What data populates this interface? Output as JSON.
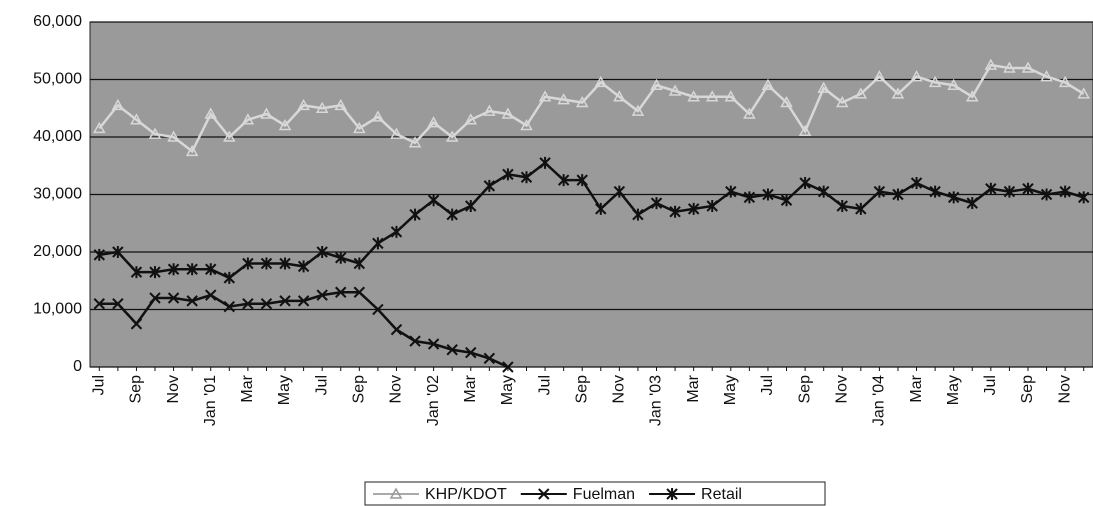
{
  "chart_data": {
    "type": "line",
    "categories": [
      "Jul",
      null,
      "Sep",
      null,
      "Nov",
      null,
      "Jan '01",
      null,
      "Mar",
      null,
      "May",
      null,
      "Jul",
      null,
      "Sep",
      null,
      "Nov",
      null,
      "Jan '02",
      null,
      "Mar",
      null,
      "May",
      null,
      "Jul",
      null,
      "Sep",
      null,
      "Nov",
      null,
      "Jan '03",
      null,
      "Mar",
      null,
      "May",
      null,
      "Jul",
      null,
      "Sep",
      null,
      "Nov",
      null,
      "Jan '04",
      null,
      "Mar",
      null,
      "May",
      null,
      "Jul",
      null,
      "Sep",
      null,
      "Nov",
      null
    ],
    "series": [
      {
        "name": "KHP/KDOT",
        "color": "#d8d8d8",
        "marker": "triangle",
        "values": [
          41500,
          45500,
          43000,
          40500,
          40000,
          37500,
          44000,
          40000,
          43000,
          44000,
          42000,
          45500,
          45000,
          45500,
          41500,
          43500,
          40500,
          39000,
          42500,
          40000,
          43000,
          44500,
          44000,
          42000,
          47000,
          46500,
          46000,
          49500,
          47000,
          44500,
          49000,
          48000,
          47000,
          47000,
          47000,
          44000,
          49000,
          46000,
          41000,
          48500,
          46000,
          47500,
          50500,
          47500,
          50500,
          49500,
          49000,
          47000,
          52500,
          52000,
          52000,
          50500,
          49500,
          47500
        ]
      },
      {
        "name": "Fuelman",
        "color": "#111111",
        "marker": "x",
        "values": [
          11000,
          11000,
          7500,
          12000,
          12000,
          11500,
          12500,
          10500,
          11000,
          11000,
          11500,
          11500,
          12500,
          13000,
          13000,
          10000,
          6500,
          4500,
          4000,
          3000,
          2500,
          1500,
          0,
          null,
          null,
          null,
          null,
          null,
          null,
          null,
          null,
          null,
          null,
          null,
          null,
          null,
          null,
          null,
          null,
          null,
          null,
          null,
          null,
          null,
          null,
          null,
          null,
          null,
          null,
          null,
          null,
          null,
          null,
          null
        ]
      },
      {
        "name": "Retail",
        "color": "#111111",
        "marker": "asterisk",
        "values": [
          19500,
          20000,
          16500,
          16500,
          17000,
          17000,
          17000,
          15500,
          18000,
          18000,
          18000,
          17500,
          20000,
          19000,
          18000,
          21500,
          23500,
          26500,
          29000,
          26500,
          28000,
          31500,
          33500,
          33000,
          35500,
          32500,
          32500,
          27500,
          30500,
          26500,
          28500,
          27000,
          27500,
          28000,
          30500,
          29500,
          30000,
          29000,
          32000,
          30500,
          28000,
          27500,
          30500,
          30000,
          32000,
          30500,
          29500,
          28500,
          31000,
          30500,
          31000,
          30000,
          30500,
          29500
        ]
      }
    ],
    "ylim": [
      0,
      60000
    ],
    "yticks": [
      0,
      {
        "value": 10000,
        "label": "10,000"
      },
      {
        "value": 20000,
        "label": "20,000"
      },
      {
        "value": 30000,
        "label": "30,000"
      },
      {
        "value": 40000,
        "label": "40,000"
      },
      {
        "value": 50000,
        "label": "50,000"
      },
      {
        "value": 60000,
        "label": "60,000"
      }
    ],
    "grid": true,
    "legend": "bottom",
    "plot_background": "#9a9a9a"
  }
}
